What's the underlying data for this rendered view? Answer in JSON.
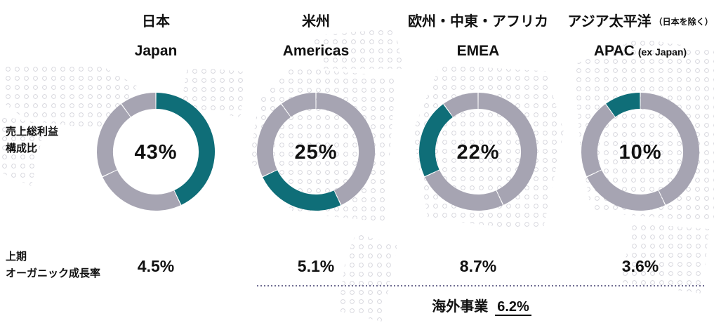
{
  "colors": {
    "highlight_teal": "#0F6E78",
    "ring_gray": "#A6A4B2",
    "dotted_line": "#6F6C91",
    "map_dots": "#DADAE0"
  },
  "left_labels": {
    "share_line1": "売上総利益",
    "share_line2": "構成比",
    "growth_line1": "上期",
    "growth_line2": "オーガニック成長率"
  },
  "overseas": {
    "label": "海外事業",
    "value": "6.2%"
  },
  "chart_data": {
    "type": "donut",
    "subtype": "shared-pie-highlight-per-region",
    "start_angle": "12 o'clock",
    "direction": "clockwise",
    "unit": "%",
    "categories": [
      "日本 Japan",
      "米州 Americas",
      "欧州・中東・アフリカ EMEA",
      "アジア太平洋 APAC (ex Japan)"
    ],
    "values": [
      43,
      25,
      22,
      10
    ],
    "organic_growth_h1_pct": [
      4.5,
      5.1,
      8.7,
      3.6
    ],
    "overseas_organic_growth_pct": 6.2,
    "regions": [
      {
        "title_ja": "日本",
        "note_ja": "",
        "title_en": "Japan",
        "note_en": "",
        "share_pct": 43,
        "share_label": "43%",
        "growth_label": "4.5%"
      },
      {
        "title_ja": "米州",
        "note_ja": "",
        "title_en": "Americas",
        "note_en": "",
        "share_pct": 25,
        "share_label": "25%",
        "growth_label": "5.1%"
      },
      {
        "title_ja": "欧州・中東・アフリカ",
        "note_ja": "",
        "title_en": "EMEA",
        "note_en": "",
        "share_pct": 22,
        "share_label": "22%",
        "growth_label": "8.7%"
      },
      {
        "title_ja": "アジア太平洋",
        "note_ja": "（日本を除く）",
        "title_en": "APAC",
        "note_en": "(ex Japan)",
        "share_pct": 10,
        "share_label": "10%",
        "growth_label": "3.6%"
      }
    ]
  }
}
